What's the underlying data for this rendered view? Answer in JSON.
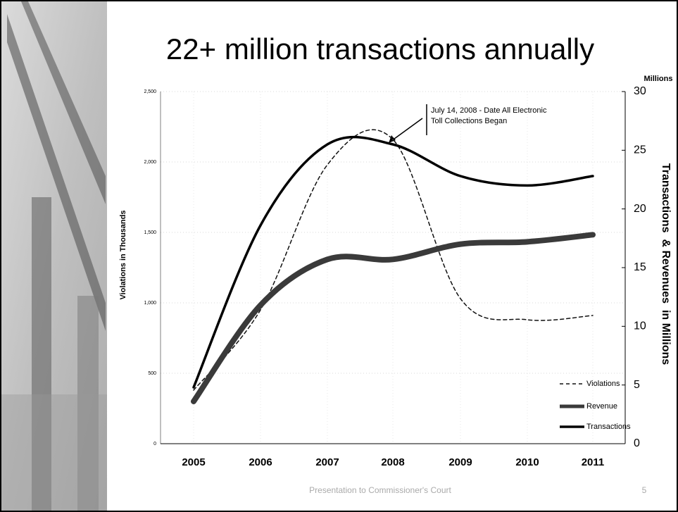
{
  "chart_data": {
    "type": "line",
    "title": "22+ million transactions annually",
    "ylabel": "Violations in Thousands",
    "y2label": "Transactions  & Revenues  in Millions",
    "y2_unit": "Millions",
    "categories": [
      "2005",
      "2006",
      "2007",
      "2008",
      "2009",
      "2010",
      "2011"
    ],
    "series": [
      {
        "name": "Violations",
        "color": "#111111",
        "style": "dashed",
        "values": [
          380,
          950,
          1980,
          2160,
          1030,
          880,
          910
        ]
      },
      {
        "name": "Revenue",
        "color": "#3a3a3a",
        "style": "thick",
        "axis": "y2",
        "values": [
          3.6,
          11.8,
          15.7,
          15.7,
          17.0,
          17.2,
          17.8
        ]
      },
      {
        "name": "Transactions",
        "color": "#000000",
        "style": "solid",
        "axis": "y2",
        "values": [
          4.8,
          18.6,
          25.5,
          25.5,
          22.8,
          22.0,
          22.8
        ]
      }
    ],
    "ylim": [
      0,
      2500
    ],
    "yticks": [
      0,
      500,
      {
        "value": 1000,
        "label": "1,000"
      },
      {
        "value": 1500,
        "label": "1,500"
      },
      {
        "value": 2000,
        "label": "2,000"
      },
      {
        "value": 2500,
        "label": "2,500"
      }
    ],
    "y2lim": [
      0,
      30
    ],
    "y2ticks": [
      0,
      5,
      10,
      15,
      20,
      25,
      30
    ],
    "grid": true,
    "legend": "lower right",
    "annotation": [
      "July 14, 2008 - Date All Electronic",
      "Toll Collections Began"
    ]
  },
  "footer": {
    "text": "Presentation to Commissioner's Court",
    "page": 5
  }
}
